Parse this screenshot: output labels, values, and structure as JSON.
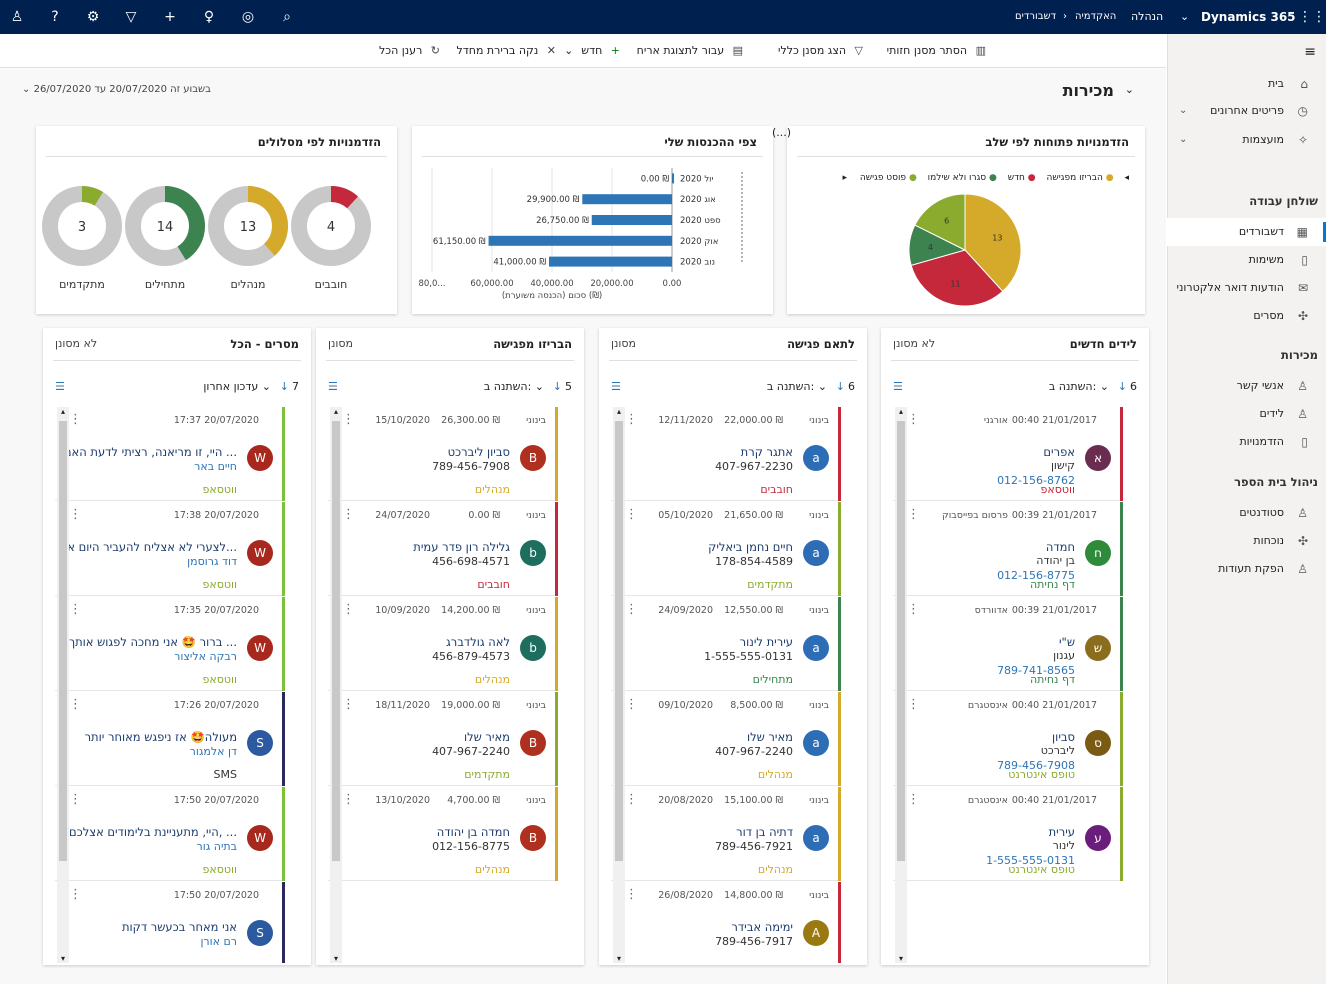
{
  "app": {
    "product": "Dynamics 365",
    "area": "הנהלה",
    "breadcrumb": [
      "האקדמיה",
      "דשבורדים"
    ]
  },
  "command_bar": {
    "hide_filter": "הסתר מסנן חזותי",
    "show_global_filter": "הצג מסנן כללי",
    "switch_view": "עבור לתצוגת אריח",
    "new": "חדש",
    "clear_cache": "נקה ברירת מחדל",
    "refresh": "רענן הכל"
  },
  "dashboard": {
    "title": "מכירות",
    "period": "בשבוע זה 20/07/2020 עד 26/07/2020"
  },
  "sidebar": {
    "items_top": [
      {
        "label": "בית",
        "icon": "home-icon"
      },
      {
        "label": "פריטים אחרונים",
        "icon": "clock-icon"
      },
      {
        "label": "מועצמות",
        "icon": "pin-icon"
      }
    ],
    "groups": [
      {
        "title": "שולחן עבודה",
        "items": [
          {
            "label": "דשבורדים",
            "icon": "dashboard-icon",
            "active": true
          },
          {
            "label": "משימות",
            "icon": "task-icon"
          },
          {
            "label": "הודעות דואר אלקטרוני",
            "icon": "mail-icon"
          },
          {
            "label": "מסרים",
            "icon": "puzzle-icon"
          }
        ]
      },
      {
        "title": "מכירות",
        "items": [
          {
            "label": "אנשי קשר",
            "icon": "person-icon"
          },
          {
            "label": "לידים",
            "icon": "person-icon"
          },
          {
            "label": "הזדמנויות",
            "icon": "document-icon"
          }
        ]
      },
      {
        "title": "ניהול בית הספר",
        "items": [
          {
            "label": "סטודנטים",
            "icon": "person-icon"
          },
          {
            "label": "נוכחות",
            "icon": "puzzle-icon"
          },
          {
            "label": "הפקת תעודות",
            "icon": "person-icon"
          }
        ]
      }
    ]
  },
  "charts": {
    "pie": {
      "title": "הזדמנויות פתוחות לפי שלב",
      "legend": [
        {
          "name": "הבריזו מפגישה",
          "color": "#d5a92a"
        },
        {
          "name": "חדש",
          "color": "#c4283a"
        },
        {
          "name": "סגרו ולא שילמו",
          "color": "#3c8350"
        },
        {
          "name": "פוסט פגישה",
          "color": "#8aab2d"
        }
      ]
    },
    "bar": {
      "title": "צפי ההכנסות שלי",
      "xlabel": "סכום (הכנסה משוערת) (₪)",
      "ylabel": "(...)"
    },
    "donuts": {
      "title": "הזדמנויות לפי מסלולים"
    }
  },
  "chart_data": [
    {
      "type": "pie",
      "title": "הזדמנויות פתוחות לפי שלב",
      "categories": [
        "הבריזו מפגישה",
        "חדש",
        "סגרו ולא שילמו",
        "פוסט פגישה"
      ],
      "values": [
        13,
        11,
        4,
        6
      ]
    },
    {
      "type": "bar",
      "title": "צפי ההכנסות שלי",
      "orientation": "horizontal",
      "categories": [
        "יול 2020",
        "אוג 2020",
        "ספט 2020",
        "אוק 2020",
        "נוב 2020"
      ],
      "values": [
        0,
        29900,
        26750,
        61150,
        41000
      ],
      "labels": [
        "0.00 ₪",
        "29,900.00 ₪",
        "26,750.00 ₪",
        "61,150.00 ₪",
        "41,000.00 ₪"
      ],
      "xlim": [
        0,
        80000
      ],
      "ticks": [
        "0.00",
        "20,000.00",
        "40,000.00",
        "60,000.00",
        "80,0..."
      ],
      "xlabel": "סכום (הכנסה משוערת) (₪)"
    },
    {
      "type": "pie",
      "title": "הזדמנויות לפי מסלולים",
      "series": [
        {
          "name": "חובבים",
          "value": 4,
          "color": "#c4283a"
        },
        {
          "name": "מנהלים",
          "value": 13,
          "color": "#d5a92a"
        },
        {
          "name": "מתחילים",
          "value": 14,
          "color": "#3c8350"
        },
        {
          "name": "מתקדמים",
          "value": 3,
          "color": "#8aab2d"
        }
      ]
    }
  ],
  "columns": [
    {
      "title": "לידים חדשים",
      "filter": "לא מסונן",
      "count": "6",
      "sort": "השתנה ב:",
      "cards": [
        {
          "time": "00:40 21/01/2017",
          "src": "אורגני",
          "letter": "א",
          "av": "#6b2d4f",
          "name": "אפרים",
          "sub": "קישון",
          "phone": "012-156-8762",
          "tag": "ווטסאפ",
          "tagc": "#c4283a",
          "barc": "#c4283a"
        },
        {
          "time": "00:39 21/01/2017",
          "src": "פרסום בפייסבוק",
          "letter": "ח",
          "av": "#2e8b3a",
          "name": "חמדה",
          "sub": "בן יהודה",
          "phone": "012-156-8775",
          "tag": "דף נחיתה",
          "tagc": "#3c8350",
          "barc": "#3c8350"
        },
        {
          "time": "00:39 21/01/2017",
          "src": "אדוורדס",
          "letter": "ש",
          "av": "#8b6e1d",
          "name": "ש\"י",
          "sub": "עגנון",
          "phone": "789-741-8565",
          "tag": "דף נחיתה",
          "tagc": "#3c8350",
          "barc": "#3c8350"
        },
        {
          "time": "00:40 21/01/2017",
          "src": "אינסטגרם",
          "letter": "ס",
          "av": "#7b5b14",
          "name": "סביון",
          "sub": "ליברכט",
          "phone": "789-456-7908",
          "tag": "טופס אינטרנט",
          "tagc": "#8aab2d",
          "barc": "#8aab2d"
        },
        {
          "time": "00:40 21/01/2017",
          "src": "אינסטגרם",
          "letter": "ע",
          "av": "#6a1d7a",
          "name": "עירית",
          "sub": "לינור",
          "phone": "1-555-555-0131",
          "tag": "טופס אינטרנט",
          "tagc": "#8aab2d",
          "barc": "#8aab2d"
        }
      ]
    },
    {
      "title": "לתאם פגישה",
      "filter": "מסונן",
      "count": "6",
      "sort": "השתנה ב:",
      "cards": [
        {
          "time": "12/11/2020",
          "amount": "22,000.00 ₪",
          "level": "בינוני",
          "letter": "a",
          "av": "#2c6db5",
          "name": "אתגר קרת",
          "phone": "407-967-2230",
          "tag": "חובבים",
          "tagc": "#c4283a",
          "barc": "#c4283a"
        },
        {
          "time": "05/10/2020",
          "amount": "21,650.00 ₪",
          "level": "בינוני",
          "letter": "a",
          "av": "#2c6db5",
          "name": "חיים נחמן ביאליק",
          "phone": "178-854-4589",
          "tag": "מתקדמים",
          "tagc": "#8aab2d",
          "barc": "#8aab2d"
        },
        {
          "time": "24/09/2020",
          "amount": "12,550.00 ₪",
          "level": "בינוני",
          "letter": "a",
          "av": "#2c6db5",
          "name": "עירית לינור",
          "phone": "1-555-555-0131",
          "tag": "מתחילים",
          "tagc": "#3c8350",
          "barc": "#3c8350"
        },
        {
          "time": "09/10/2020",
          "amount": "8,500.00 ₪",
          "level": "בינוני",
          "letter": "a",
          "av": "#2c6db5",
          "name": "מאיר שלו",
          "phone": "407-967-2240",
          "tag": "מנהלים",
          "tagc": "#d5a92a",
          "barc": "#d5a92a"
        },
        {
          "time": "20/08/2020",
          "amount": "15,100.00 ₪",
          "level": "בינוני",
          "letter": "a",
          "av": "#2c6db5",
          "name": "דתיה בן דור",
          "phone": "789-456-7921",
          "tag": "מנהלים",
          "tagc": "#d5a92a",
          "barc": "#d5a92a"
        },
        {
          "time": "26/08/2020",
          "amount": "14,800.00 ₪",
          "level": "בינוני",
          "letter": "A",
          "av": "#9a7a10",
          "name": "ימימה אבידר",
          "phone": "789-456-7917",
          "tag": "",
          "tagc": "#c4283a",
          "barc": "#c4283a"
        }
      ]
    },
    {
      "title": "הבריזו מפגישה",
      "filter": "מסונן",
      "count": "5",
      "sort": "השתנה ב:",
      "cards": [
        {
          "time": "15/10/2020",
          "amount": "26,300.00 ₪",
          "level": "בינוני",
          "letter": "B",
          "av": "#b0301f",
          "name": "סביון ליברכט",
          "phone": "789-456-7908",
          "tag": "מנהלים",
          "tagc": "#d5a92a",
          "barc": "#d5a92a"
        },
        {
          "time": "24/07/2020",
          "amount": "0.00 ₪",
          "level": "בינוני",
          "letter": "b",
          "av": "#1d6e5f",
          "name": "גלילה רון פדר עמית",
          "phone": "456-698-4571",
          "tag": "חובבים",
          "tagc": "#c4283a",
          "barc": "#c4283a"
        },
        {
          "time": "10/09/2020",
          "amount": "14,200.00 ₪",
          "level": "בינוני",
          "letter": "b",
          "av": "#1d6e5f",
          "name": "לאה גולדברג",
          "phone": "456-879-4573",
          "tag": "מנהלים",
          "tagc": "#d5a92a",
          "barc": "#d5a92a"
        },
        {
          "time": "18/11/2020",
          "amount": "19,000.00 ₪",
          "level": "בינוני",
          "letter": "B",
          "av": "#b0301f",
          "name": "מאיר שלו",
          "phone": "407-967-2240",
          "tag": "מתקדמים",
          "tagc": "#8aab2d",
          "barc": "#8aab2d"
        },
        {
          "time": "13/10/2020",
          "amount": "4,700.00 ₪",
          "level": "בינוני",
          "letter": "B",
          "av": "#b0301f",
          "name": "חמדה בן יהודה",
          "phone": "012-156-8775",
          "tag": "מנהלים",
          "tagc": "#d5a92a",
          "barc": "#d5a92a"
        }
      ]
    },
    {
      "title": "מסרים - הכל",
      "filter": "לא מסונן",
      "count": "7",
      "sort": "עדכון אחרון",
      "cards": [
        {
          "time": "17:37 20/07/2020",
          "letter": "W",
          "av": "#a8281e",
          "name": "היי, זו מריאנה, רציתי לדעת האם ...",
          "phone": "חיים באר",
          "tag": "ווטסאפ",
          "tagc": "#8aab2d",
          "barc": "#7cc13a"
        },
        {
          "time": "17:38 20/07/2020",
          "letter": "W",
          "av": "#a8281e",
          "name": "לצערי לא אצליח להעביר היום א...",
          "phone": "דוד גרוסמן",
          "tag": "ווטסאפ",
          "tagc": "#8aab2d",
          "barc": "#7cc13a"
        },
        {
          "time": "17:35 20/07/2020",
          "letter": "W",
          "av": "#a8281e",
          "name": "ברור 🤩 אני מחכה לפגוש אותך ...",
          "phone": "רבקה אליצור",
          "tag": "ווטסאפ",
          "tagc": "#8aab2d",
          "barc": "#7cc13a"
        },
        {
          "time": "17:26 20/07/2020",
          "letter": "S",
          "av": "#2c5aa0",
          "name": "מעולה🤩 אז ניפגש מאוחר יותר",
          "phone": "דן אלמגור",
          "tag": "SMS",
          "tagc": "#333",
          "barc": "#2a2a5a"
        },
        {
          "time": "17:50 20/07/2020",
          "letter": "W",
          "av": "#a8281e",
          "name": "היי, מתעניינת בלימודים אצלכם, ...",
          "phone": "בתיה גור",
          "tag": "ווטסאפ",
          "tagc": "#8aab2d",
          "barc": "#7cc13a"
        },
        {
          "time": "17:50 20/07/2020",
          "letter": "S",
          "av": "#2c5aa0",
          "name": "אני מאחר בכעשר דקות",
          "phone": "רם אורן",
          "tag": "",
          "tagc": "#333",
          "barc": "#2a2a5a"
        }
      ]
    }
  ]
}
